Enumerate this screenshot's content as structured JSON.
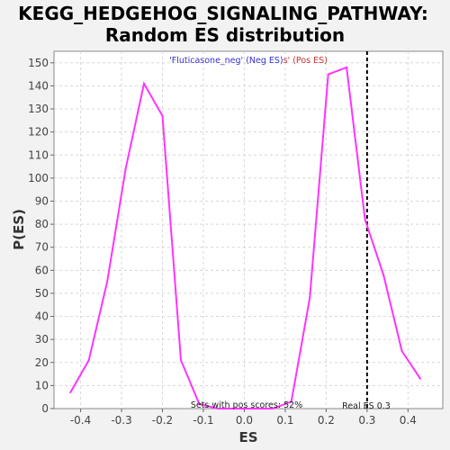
{
  "chart_data": {
    "type": "line",
    "title_line1": "KEGG_HEDGEHOG_SIGNALING_PATHWAY:",
    "title_line2": "Random ES distribution",
    "xlabel": "ES",
    "ylabel": "P(ES)",
    "xlim": [
      -0.465,
      0.485
    ],
    "ylim": [
      0,
      155
    ],
    "x_ticks": [
      -0.4,
      -0.3,
      -0.2,
      -0.1,
      0.0,
      0.1,
      0.2,
      0.3,
      0.4
    ],
    "x_tick_labels": [
      "-0.4",
      "-0.3",
      "-0.2",
      "-0.1",
      "0.0",
      "0.1",
      "0.2",
      "0.3",
      "0.4"
    ],
    "y_ticks": [
      0,
      10,
      20,
      30,
      40,
      50,
      60,
      70,
      80,
      90,
      100,
      110,
      120,
      130,
      140,
      150
    ],
    "y_tick_labels": [
      "0",
      "10",
      "20",
      "30",
      "40",
      "50",
      "60",
      "70",
      "80",
      "90",
      "100",
      "110",
      "120",
      "130",
      "140",
      "150"
    ],
    "grid": true,
    "series": [
      {
        "color": "#ff33ff",
        "x": [
          -0.425,
          -0.38,
          -0.335,
          -0.29,
          -0.245,
          -0.2,
          -0.155,
          -0.11,
          -0.065,
          -0.02,
          0.025,
          0.07,
          0.115,
          0.16,
          0.205,
          0.25,
          0.295,
          0.34,
          0.385,
          0.43
        ],
        "y": [
          7,
          21,
          55,
          104,
          141,
          127,
          21,
          2,
          0,
          0,
          0,
          0,
          3,
          48,
          145,
          148,
          82,
          58,
          25,
          13
        ]
      }
    ],
    "real_es": {
      "x": 0.3,
      "label": "Real ES 0.3",
      "color": "#000000"
    },
    "legend": {
      "part1": "'Fluticasone_neg' (Neg ES)",
      "part1_color": "#3333cc",
      "part2": "s' (Pos ES)",
      "part2_color": "#cc3333"
    },
    "annotation": "Sets with pos scores: 52%"
  }
}
